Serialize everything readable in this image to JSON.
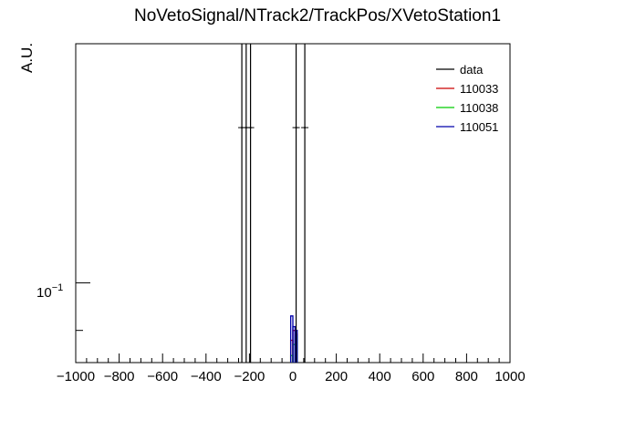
{
  "chart_data": {
    "type": "histogram",
    "title": "NoVetoSignal/NTrack2/TrackPos/XVetoStation1",
    "xlabel": "",
    "ylabel": "A.U.",
    "xlim": [
      -1000,
      1000
    ],
    "ylim": [
      0.055,
      0.6
    ],
    "yscale": "log",
    "x_ticks": [
      -1000,
      -800,
      -600,
      -400,
      -200,
      0,
      200,
      400,
      600,
      800,
      1000
    ],
    "x_tick_labels": [
      "−1000",
      "−800",
      "−600",
      "−400",
      "−200",
      "0",
      "200",
      "400",
      "600",
      "800",
      "1000"
    ],
    "y_tick_label_base": "10",
    "y_tick_label_exp": "−1",
    "y_tick_value": 0.1,
    "y_minor_ticks": [
      0.07
    ],
    "bin_width": 10,
    "legend": {
      "placement": "top-right"
    },
    "series": [
      {
        "name": "data",
        "color": "#000000",
        "style": "points",
        "points": [
          {
            "x": -235,
            "y": 0.32
          },
          {
            "x": -215,
            "y": 0.32
          },
          {
            "x": -195,
            "y": 0.32
          },
          {
            "x": 15,
            "y": 0.32
          },
          {
            "x": 55,
            "y": 0.32
          }
        ]
      },
      {
        "name": "110033",
        "color": "#cc0000",
        "style": "hist",
        "bins": [
          {
            "x": -5,
            "y": 0.065
          },
          {
            "x": 5,
            "y": 0.07
          },
          {
            "x": 15,
            "y": 0.068
          }
        ]
      },
      {
        "name": "110038",
        "color": "#00cc00",
        "style": "hist",
        "bins": [
          {
            "x": -5,
            "y": 0.058
          },
          {
            "x": 5,
            "y": 0.063
          },
          {
            "x": 15,
            "y": 0.067
          }
        ]
      },
      {
        "name": "110051",
        "color": "#0000aa",
        "style": "hist",
        "bins": [
          {
            "x": -5,
            "y": 0.078
          },
          {
            "x": 5,
            "y": 0.072
          },
          {
            "x": 15,
            "y": 0.07
          }
        ]
      }
    ]
  }
}
